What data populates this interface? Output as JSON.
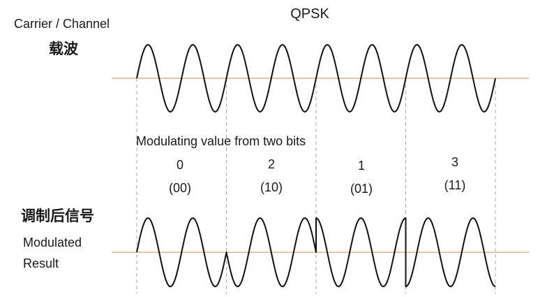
{
  "title": "QPSK",
  "carrier": {
    "label_en": "Carrier / Channel",
    "label_zh": "载波",
    "cycles": 8
  },
  "modulation_caption": "Modulating value from two bits",
  "segments": [
    {
      "value": "0",
      "bits": "(00)",
      "phase_deg": 0,
      "cycles": 2
    },
    {
      "value": "2",
      "bits": "(10)",
      "phase_deg": 180,
      "cycles": 2
    },
    {
      "value": "1",
      "bits": "(01)",
      "phase_deg": 90,
      "cycles": 2
    },
    {
      "value": "3",
      "bits": "(11)",
      "phase_deg": 270,
      "cycles": 2
    }
  ],
  "result": {
    "label_zh": "调制后信号",
    "label_en_line1": "Modulated",
    "label_en_line2": "Result"
  },
  "colors": {
    "axis": "#d9a67a",
    "wave": "#111111",
    "divider": "#a8a8a8",
    "text": "#1a1a1a"
  }
}
